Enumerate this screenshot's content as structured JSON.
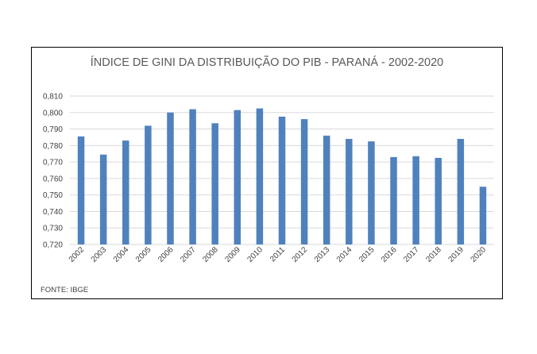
{
  "source_note": "FONTE: IBGE",
  "colors": {
    "bar": "#4f81bd",
    "grid": "#d9d9d9",
    "frame": "#000000",
    "text": "#404040"
  },
  "chart_data": {
    "type": "bar",
    "title": "ÍNDICE DE GINI DA DISTRIBUIÇÃO DO PIB - PARANÁ - 2002-2020",
    "xlabel": "",
    "ylabel": "",
    "ylim": [
      0.72,
      0.81
    ],
    "yticks": [
      "0,720",
      "0,730",
      "0,740",
      "0,750",
      "0,760",
      "0,770",
      "0,780",
      "0,790",
      "0,800",
      "0,810"
    ],
    "grid": true,
    "categories": [
      "2002",
      "2003",
      "2004",
      "2005",
      "2006",
      "2007",
      "2008",
      "2009",
      "2010",
      "2011",
      "2012",
      "2013",
      "2014",
      "2015",
      "2016",
      "2017",
      "2018",
      "2019",
      "2020"
    ],
    "values": [
      0.7855,
      0.7745,
      0.783,
      0.792,
      0.8,
      0.802,
      0.7935,
      0.8015,
      0.8025,
      0.7975,
      0.796,
      0.786,
      0.784,
      0.7825,
      0.773,
      0.7735,
      0.7725,
      0.784,
      0.755
    ]
  }
}
